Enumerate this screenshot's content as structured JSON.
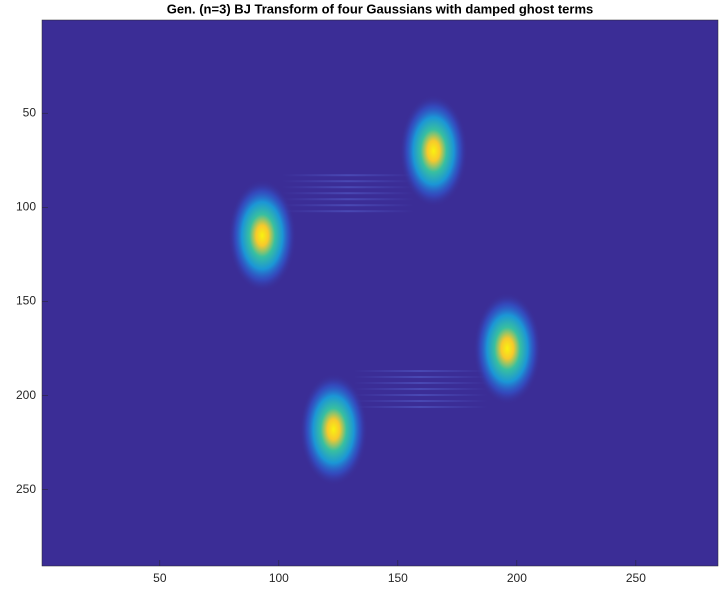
{
  "chart_data": {
    "type": "image",
    "title": "Gen. (n=3) BJ Transform of four Gaussians with damped ghost terms",
    "x": [
      165,
      93,
      196,
      123
    ],
    "y": [
      70,
      115,
      175,
      218
    ],
    "xlim": [
      0.5,
      284.5
    ],
    "ylim": [
      0.5,
      290.5
    ],
    "y_reversed": true,
    "xticks": [
      50,
      100,
      150,
      200,
      250
    ],
    "yticks": [
      50,
      100,
      150,
      200,
      250
    ],
    "background": "#3b2d96"
  }
}
